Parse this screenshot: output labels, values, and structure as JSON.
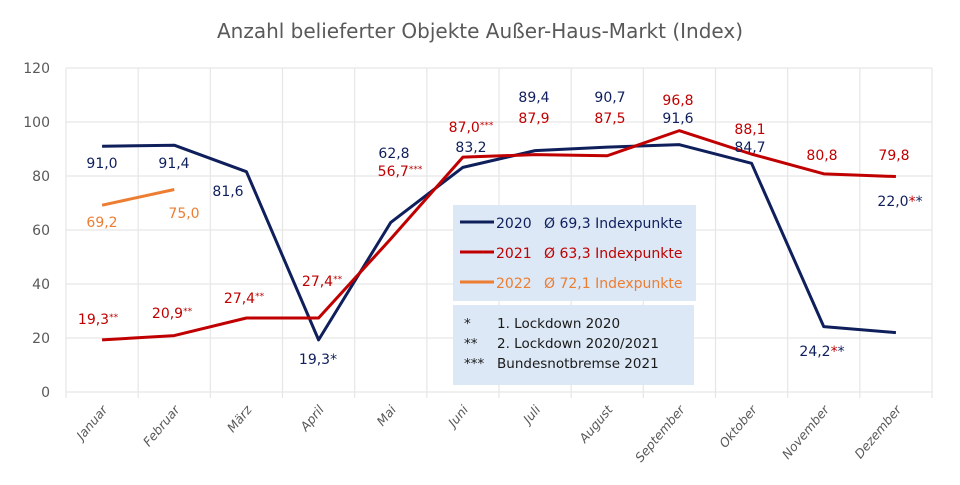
{
  "chart_data": {
    "type": "line",
    "title": "Anzahl belieferter Objekte Außer-Haus-Markt (Index)",
    "xlabel": "",
    "ylabel": "",
    "ylim": [
      0,
      120
    ],
    "yticks": [
      "0",
      "20",
      "40",
      "60",
      "80",
      "100",
      "120"
    ],
    "grid": true,
    "categories": [
      "Januar",
      "Februar",
      "März",
      "April",
      "Mai",
      "Juni",
      "Juli",
      "August",
      "September",
      "Oktober",
      "November",
      "Dezember"
    ],
    "series": [
      {
        "name": "2020",
        "color": "#0f1f5c",
        "values": [
          91.0,
          91.4,
          81.6,
          19.3,
          62.8,
          83.2,
          89.4,
          90.7,
          91.6,
          84.7,
          24.2,
          22.0
        ],
        "labels": [
          "91,0",
          "91,4",
          "81,6",
          "19,3",
          "62,8",
          "83,2",
          "89,4",
          "90,7",
          "91,6",
          "84,7",
          "24,2",
          "22,0"
        ],
        "label_marks": [
          "",
          "",
          "",
          "*",
          "",
          "",
          "",
          "",
          "",
          "",
          "**",
          "**"
        ]
      },
      {
        "name": "2021",
        "color": "#c00000",
        "values": [
          19.3,
          20.9,
          27.4,
          27.4,
          56.7,
          87.0,
          87.9,
          87.5,
          96.8,
          88.1,
          80.8,
          79.8
        ],
        "labels": [
          "19,3",
          "20,9",
          "27,4",
          "27,4",
          "56,7",
          "87,0",
          "87,9",
          "87,5",
          "96,8",
          "88,1",
          "80,8",
          "79,8"
        ],
        "label_marks": [
          "**",
          "**",
          "**",
          "**",
          "***",
          "***",
          "",
          "",
          "",
          "",
          "",
          ""
        ]
      },
      {
        "name": "2022",
        "color": "#ed7d31",
        "values": [
          69.2,
          75.0,
          null,
          null,
          null,
          null,
          null,
          null,
          null,
          null,
          null,
          null
        ],
        "labels": [
          "69,2",
          "75,0",
          "",
          "",
          "",
          "",
          "",
          "",
          "",
          "",
          "",
          ""
        ],
        "label_marks": [
          "",
          "",
          "",
          "",
          "",
          "",
          "",
          "",
          "",
          "",
          "",
          ""
        ]
      }
    ],
    "legend": {
      "placement": "center",
      "items": [
        {
          "year": "2020",
          "avg": "Ø 69,3 Indexpunkte",
          "color": "#0f1f5c"
        },
        {
          "year": "2021",
          "avg": "Ø 63,3 Indexpunkte",
          "color": "#c00000"
        },
        {
          "year": "2022",
          "avg": "Ø 72,1 Indexpunkte",
          "color": "#ed7d31"
        }
      ]
    },
    "footnotes": [
      {
        "mark": "*",
        "text": "1. Lockdown 2020",
        "mark_color": "#0f1f5c"
      },
      {
        "mark": "**",
        "text": "2. Lockdown 2020/2021",
        "mark_color": "#c00000"
      },
      {
        "mark": "***",
        "text": "Bundesnotbremse 2021",
        "mark_color": "#c00000"
      }
    ],
    "colors": {
      "background": "#ffffff",
      "grid": "#e6e6e6",
      "legend_box": "#dce8f5",
      "axis_text": "#595959"
    }
  }
}
